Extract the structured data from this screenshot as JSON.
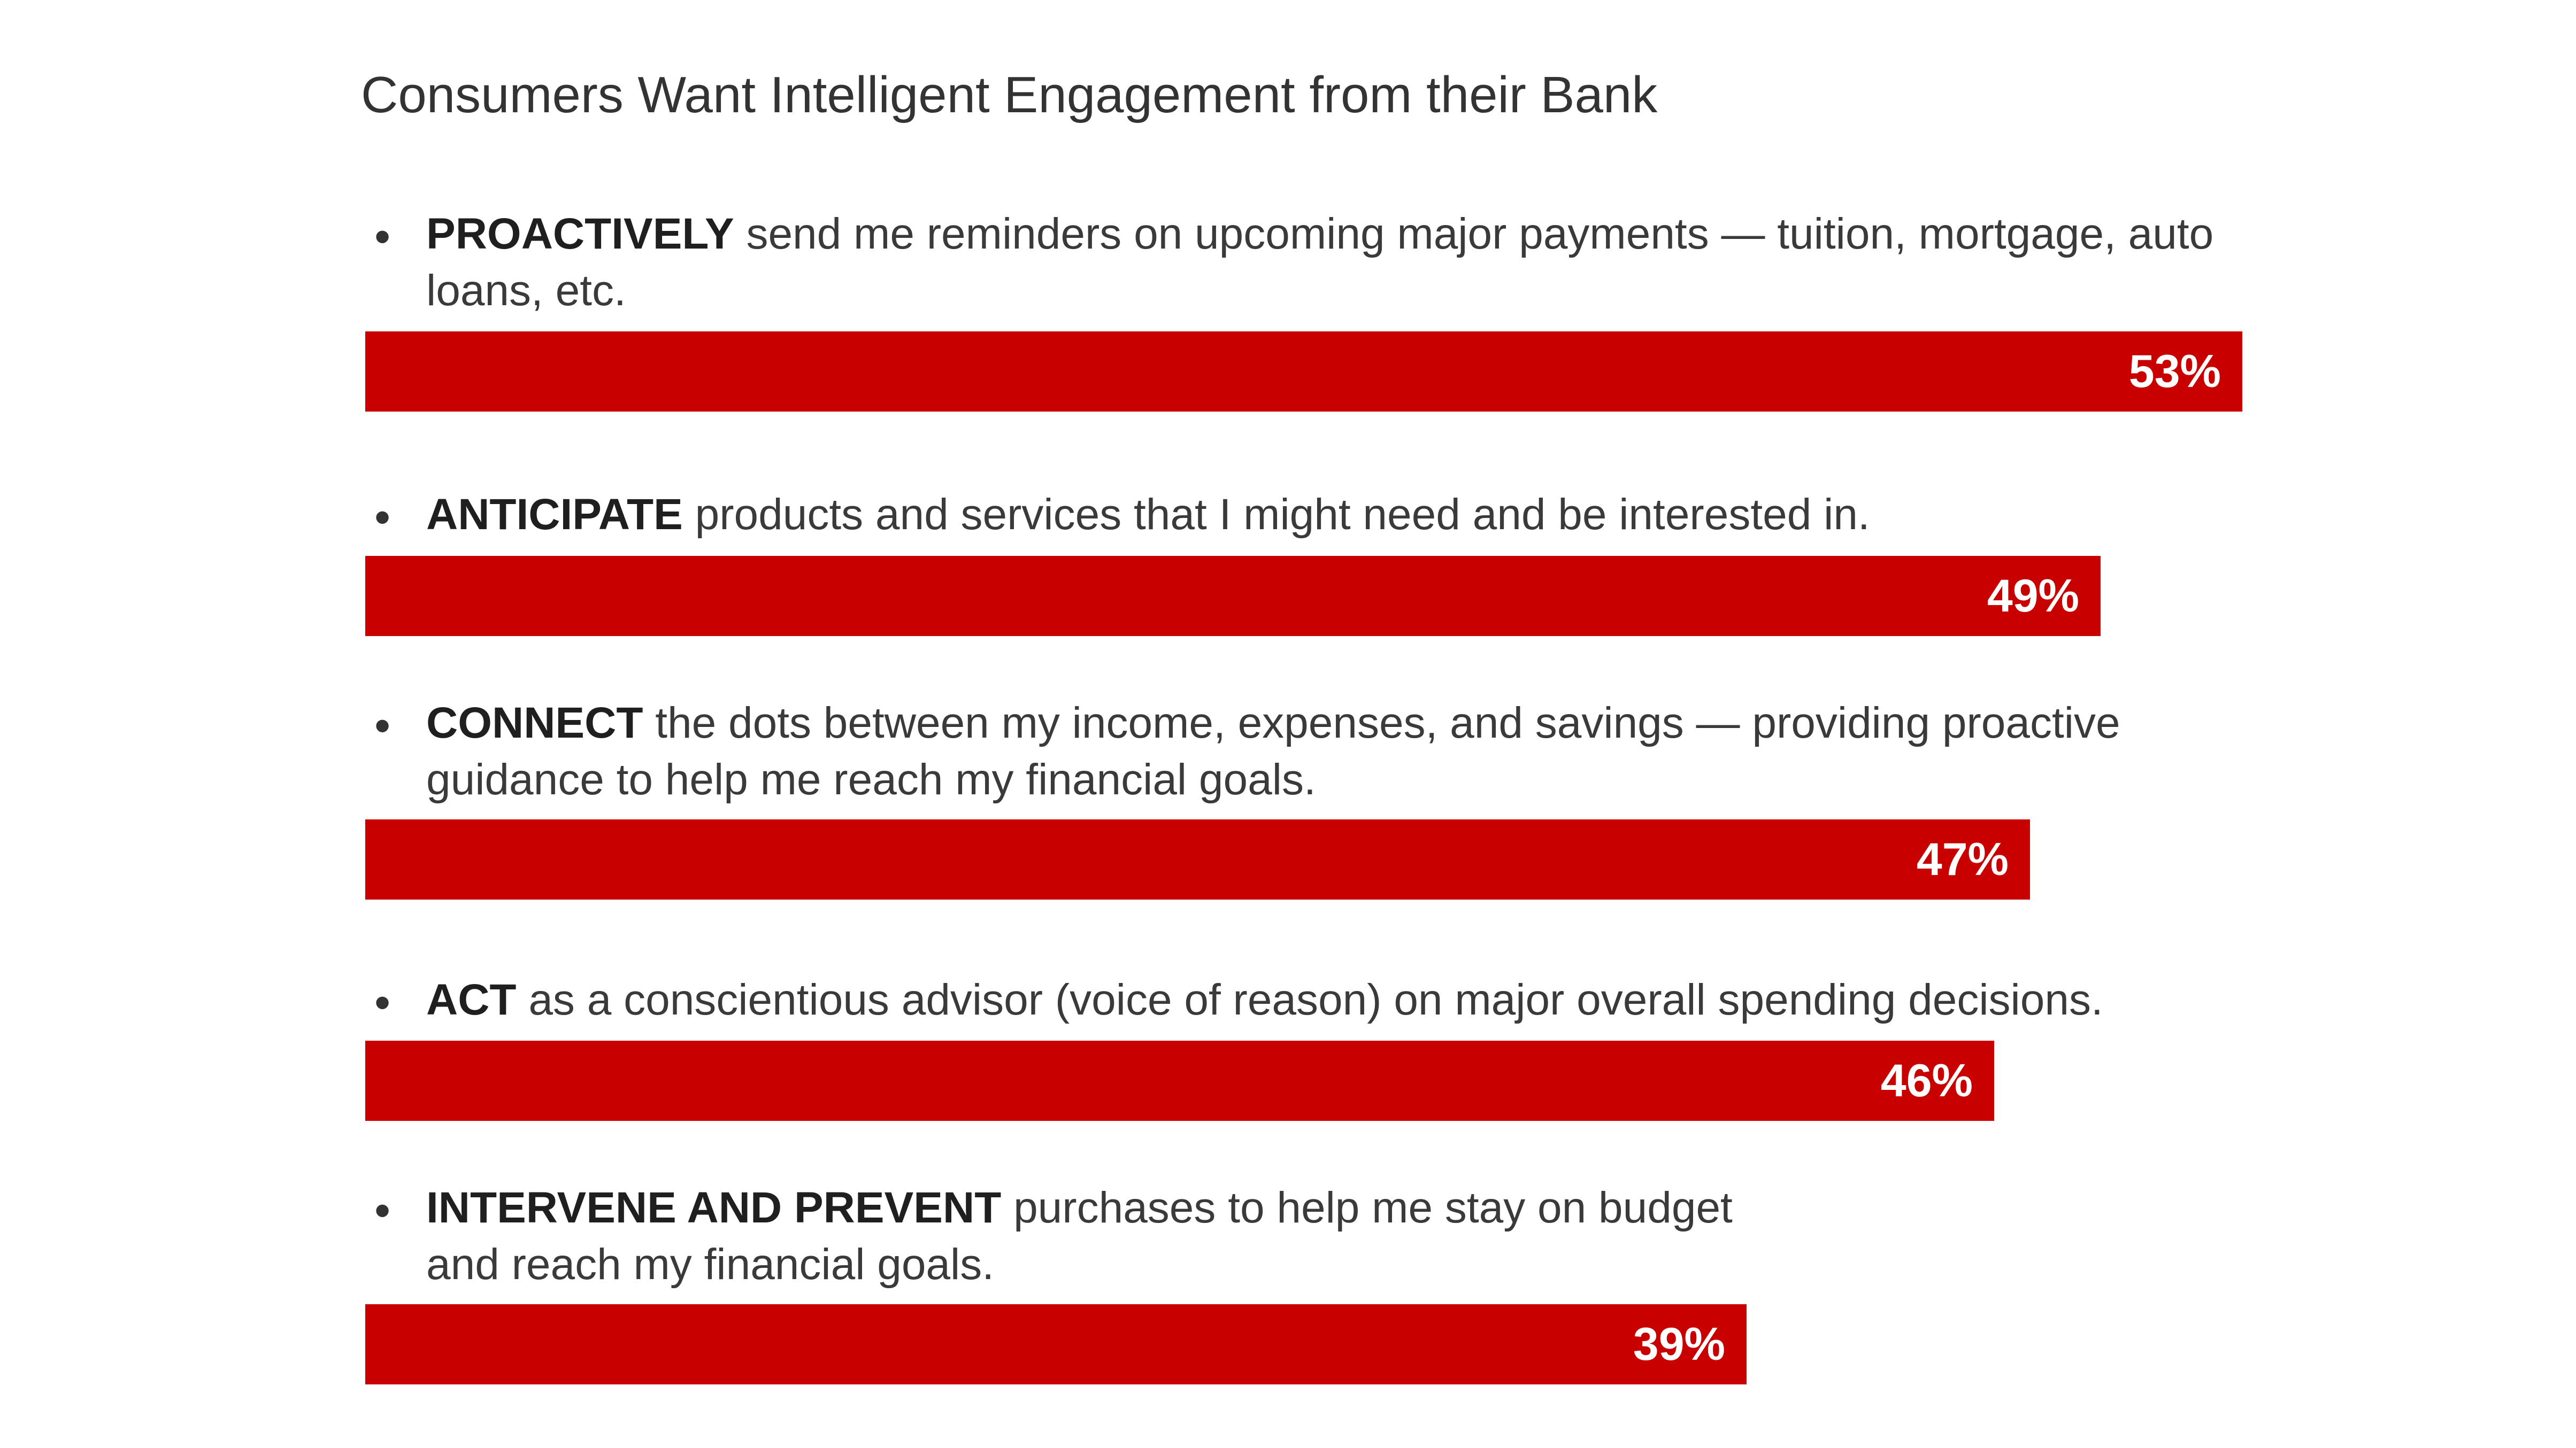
{
  "chart_data": {
    "type": "bar",
    "orientation": "horizontal",
    "title": "Consumers Want Intelligent Engagement from their Bank",
    "xlim": [
      0,
      53
    ],
    "colors": {
      "bar": "#c80000",
      "label": "#ffffff"
    },
    "items": [
      {
        "keyword": "PROACTIVELY",
        "text": " send me reminders on upcoming major payments — tuition, mortgage, auto loans, etc.",
        "value": 53,
        "value_label": "53%"
      },
      {
        "keyword": "ANTICIPATE",
        "text": " products and services that I might need and be interested in.",
        "value": 49,
        "value_label": "49%"
      },
      {
        "keyword": "CONNECT",
        "text": " the dots between my income, expenses, and savings — providing proactive guidance to help me reach my financial goals.",
        "value": 47,
        "value_label": "47%"
      },
      {
        "keyword": "ACT",
        "text": " as a conscientious advisor (voice of reason) on major overall spending decisions.",
        "value": 46,
        "value_label": "46%"
      },
      {
        "keyword": "INTERVENE AND PREVENT",
        "text": " purchases to help me stay on budget and reach my financial goals.",
        "value": 39,
        "value_label": "39%"
      }
    ]
  }
}
